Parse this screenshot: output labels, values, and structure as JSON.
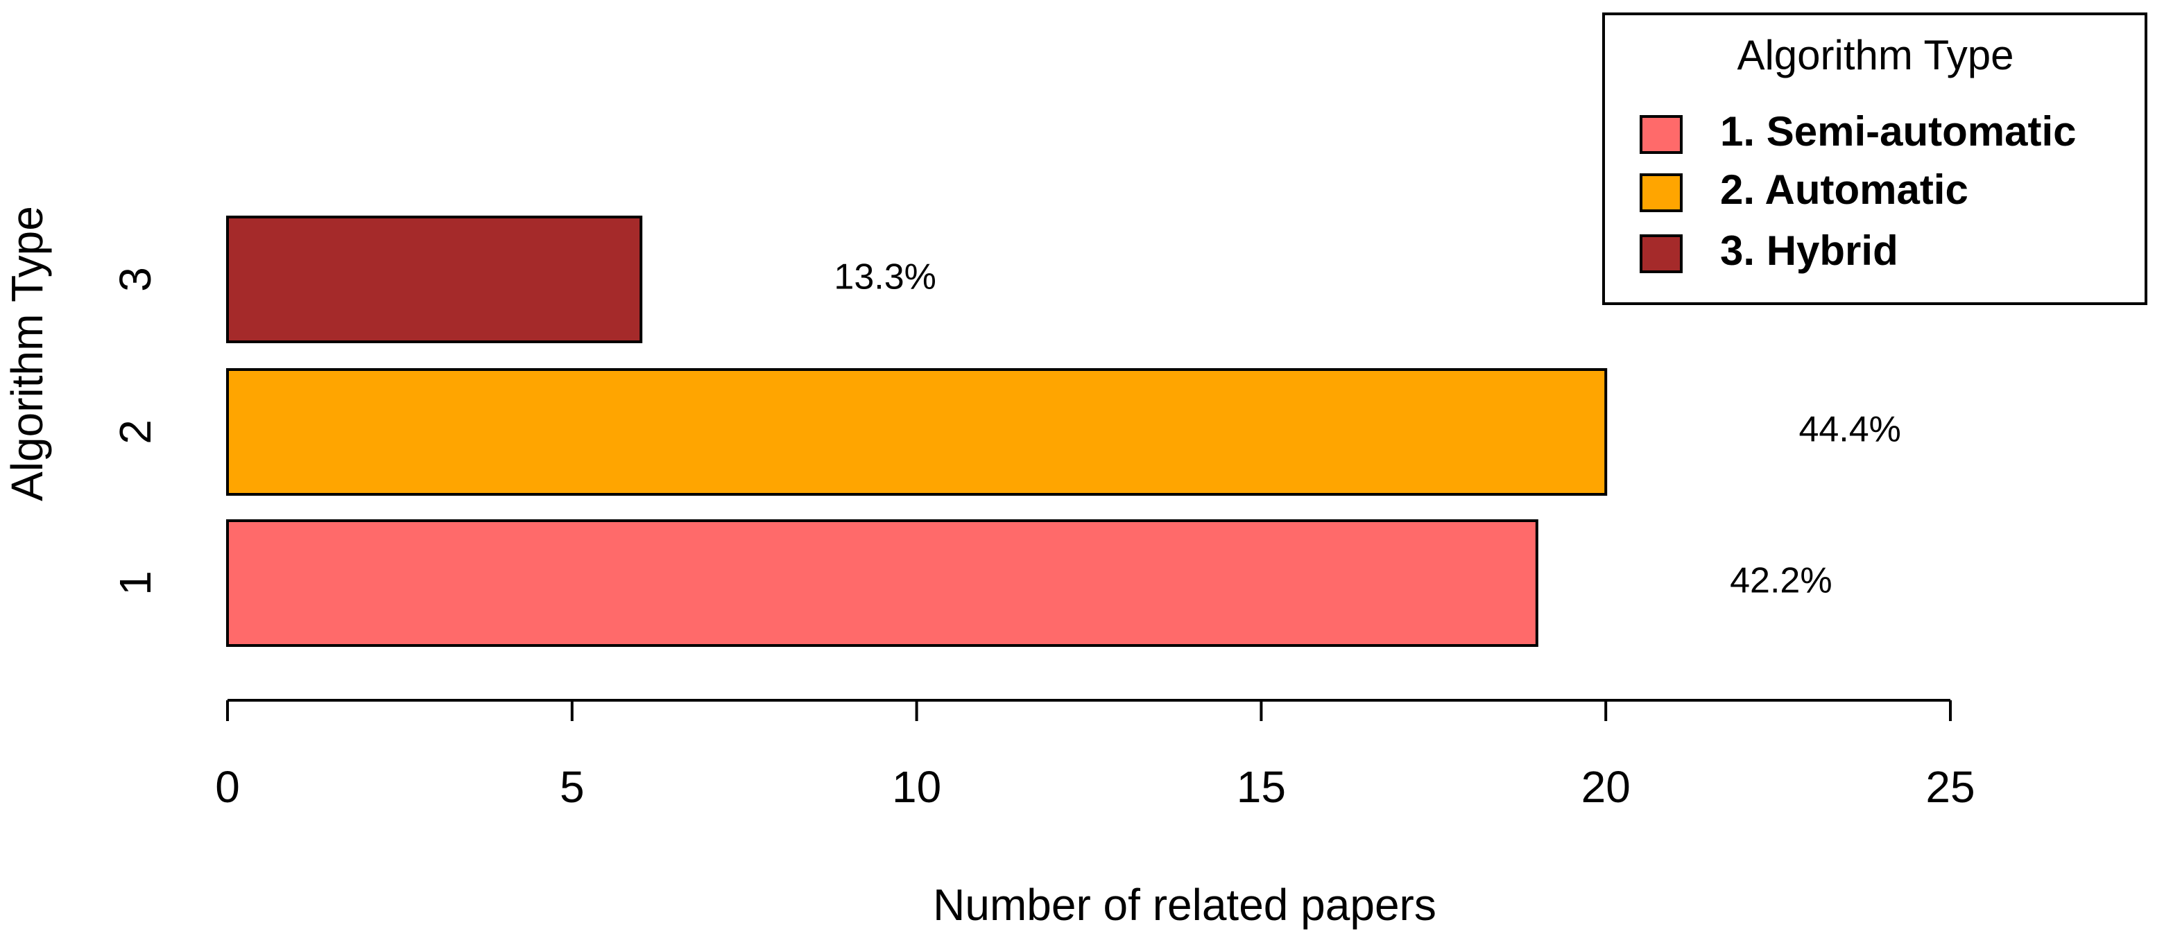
{
  "chart_data": {
    "type": "hbar",
    "categories": [
      "1",
      "2",
      "3"
    ],
    "values": [
      19,
      20,
      6
    ],
    "colors": [
      "#ff6a6a",
      "#ffa500",
      "#a52a2a"
    ],
    "annotations": [
      "42.2%",
      "44.4%",
      "13.3%"
    ],
    "xlim": [
      0,
      25
    ],
    "xticks": [
      0,
      5,
      10,
      15,
      20,
      25
    ],
    "x_label": "Number of related papers",
    "y_label": "Algorithm Type",
    "legend": {
      "title": "Algorithm Type",
      "position": "top-right",
      "labels": [
        "1. Semi-automatic",
        "2. Automatic",
        "3. Hybrid"
      ]
    }
  }
}
